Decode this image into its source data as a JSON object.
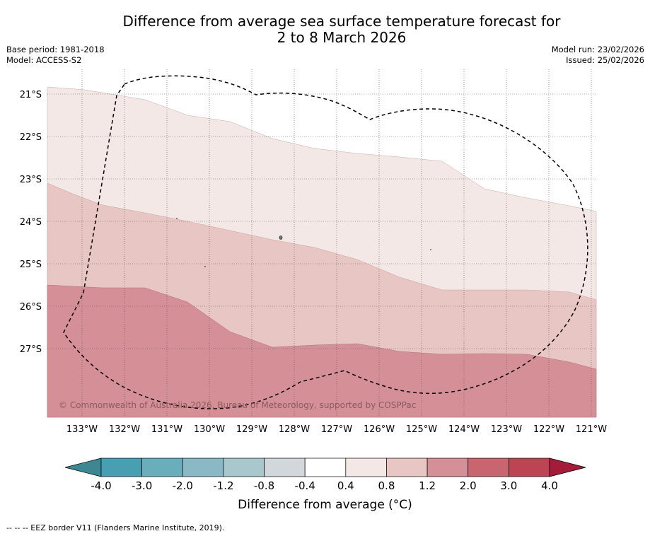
{
  "title": {
    "line1": "Difference from average sea surface temperature forecast for",
    "line2": "2 to 8 March 2026"
  },
  "meta_left": {
    "base_period": "Base period: 1981-2018",
    "model": "Model: ACCESS-S2"
  },
  "meta_right": {
    "model_run": "Model run: 23/02/2026",
    "issued": "Issued: 25/02/2026"
  },
  "map": {
    "lat_labels": [
      "21°S",
      "22°S",
      "23°S",
      "24°S",
      "25°S",
      "26°S",
      "27°S"
    ],
    "lon_labels": [
      "133°W",
      "132°W",
      "131°W",
      "130°W",
      "129°W",
      "128°W",
      "127°W",
      "126°W",
      "125°W",
      "124°W",
      "123°W",
      "122°W",
      "121°W"
    ],
    "copyright": "© Commonwealth of Australia 2026, Bureau of Meteorology, supported by COSPPac",
    "anomaly_zones": [
      {
        "range": "0.4 to 0.8",
        "color": "#f4e8e7"
      },
      {
        "range": "0.8 to 1.2",
        "color": "#e8c6c3"
      },
      {
        "range": "1.2 to 2.0",
        "color": "#d58f97"
      }
    ]
  },
  "colorbar": {
    "ticks": [
      "-4.0",
      "-3.0",
      "-2.0",
      "-1.2",
      "-0.8",
      "-0.4",
      "0.4",
      "0.8",
      "1.2",
      "2.0",
      "3.0",
      "4.0"
    ],
    "colors": [
      "#489fb1",
      "#6aaebc",
      "#8ab9c5",
      "#a9c8cd",
      "#d1d7da",
      "#ffffff",
      "#f4e8e7",
      "#e8c6c3",
      "#d58f97",
      "#c9656f",
      "#bd4553"
    ],
    "under_color": "#3d8792",
    "over_color": "#a51c3a",
    "label": "Difference from average (°C)"
  },
  "footer": "--  --  -- EEZ border V11 (Flanders Marine Institute, 2019)."
}
